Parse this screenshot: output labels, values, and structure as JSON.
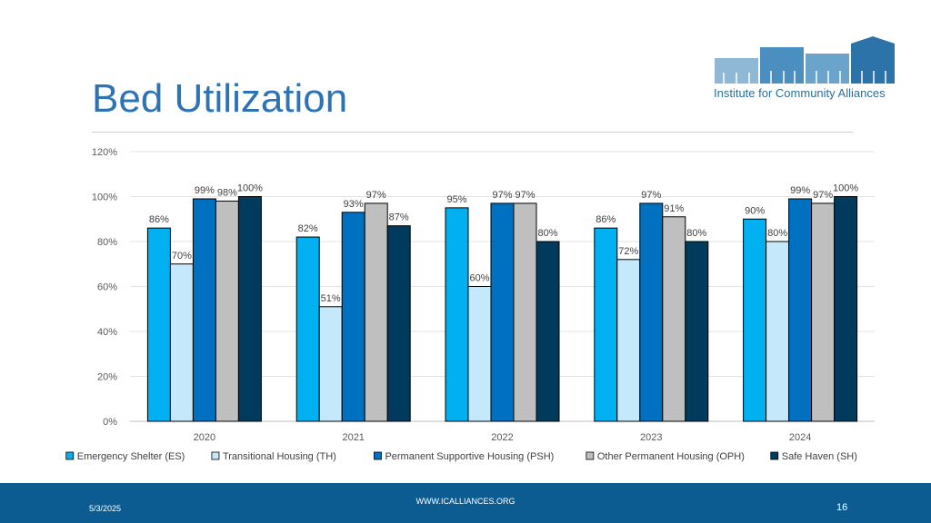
{
  "slide": {
    "title": "Bed Utilization",
    "logo_text": "Institute for Community Alliances",
    "footer_date": "5/3/2025",
    "footer_url": "WWW.ICALLIANCES.ORG",
    "page_number": "16"
  },
  "colors": {
    "title": "#2e74b5",
    "footer": "#0d5c91",
    "series": [
      "#00b0f0",
      "#c5e8fb",
      "#0070c0",
      "#bfbfbf",
      "#003a5d"
    ]
  },
  "chart_data": {
    "type": "bar",
    "title": "",
    "xlabel": "",
    "ylabel": "",
    "ylim": [
      0,
      120
    ],
    "yticks": [
      "0%",
      "20%",
      "40%",
      "60%",
      "80%",
      "100%",
      "120%"
    ],
    "categories": [
      "2020",
      "2021",
      "2022",
      "2023",
      "2024"
    ],
    "series": [
      {
        "name": "Emergency Shelter (ES)",
        "values": [
          86,
          82,
          95,
          86,
          90
        ],
        "labels": [
          "86%",
          "82%",
          "95%",
          "86%",
          "90%"
        ]
      },
      {
        "name": "Transitional Housing (TH)",
        "values": [
          70,
          51,
          60,
          72,
          80
        ],
        "labels": [
          "70%",
          "51%",
          "60%",
          "72%",
          "80%"
        ]
      },
      {
        "name": "Permanent Supportive Housing (PSH)",
        "values": [
          99,
          93,
          97,
          97,
          99
        ],
        "labels": [
          "99%",
          "93%",
          "97%",
          "97%",
          "99%"
        ]
      },
      {
        "name": "Other Permanent Housing (OPH)",
        "values": [
          98,
          97,
          97,
          91,
          97
        ],
        "labels": [
          "98%",
          "97%",
          "97%",
          "91%",
          "97%"
        ]
      },
      {
        "name": "Safe Haven (SH)",
        "values": [
          100,
          87,
          80,
          80,
          100
        ],
        "labels": [
          "100%",
          "87%",
          "80%",
          "80%",
          "100%"
        ]
      }
    ],
    "legend_position": "bottom"
  }
}
